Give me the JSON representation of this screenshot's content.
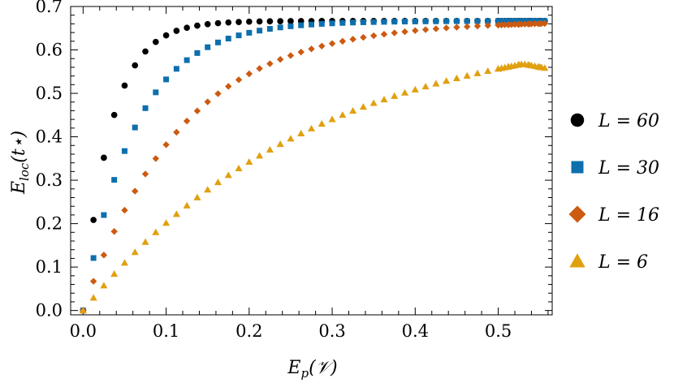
{
  "chart_data": {
    "type": "scatter",
    "xlabel": "E_p(𝒱)",
    "ylabel": "E_loc(t⋆)",
    "xlim": [
      -0.015,
      0.565
    ],
    "ylim": [
      -0.01,
      0.7
    ],
    "xticks": [
      0.0,
      0.1,
      0.2,
      0.3,
      0.4,
      0.5
    ],
    "yticks": [
      0.0,
      0.1,
      0.2,
      0.3,
      0.4,
      0.5,
      0.6,
      0.7
    ],
    "xtick_labels": [
      "0.0",
      "0.1",
      "0.2",
      "0.3",
      "0.4",
      "0.5"
    ],
    "ytick_labels": [
      "0.0",
      "0.1",
      "0.2",
      "0.3",
      "0.4",
      "0.5",
      "0.6",
      "0.7"
    ],
    "grid": false,
    "legend_position": "right",
    "series": [
      {
        "name": "L = 60",
        "legend": "L = 60",
        "marker": "circle",
        "color": "#000000",
        "saturation": 0.6667,
        "rate": 30
      },
      {
        "name": "L = 30",
        "legend": "L = 30",
        "marker": "square",
        "color": "#0e6fad",
        "saturation": 0.6667,
        "rate": 16
      },
      {
        "name": "L = 16",
        "legend": "L = 16",
        "marker": "diamond",
        "color": "#cc5a10",
        "saturation": 0.6667,
        "rate": 8.5
      },
      {
        "name": "L = 6",
        "legend": "L = 6",
        "marker": "triangle",
        "color": "#e0a010",
        "saturation": 0.6667,
        "rate": 3.6
      }
    ]
  }
}
